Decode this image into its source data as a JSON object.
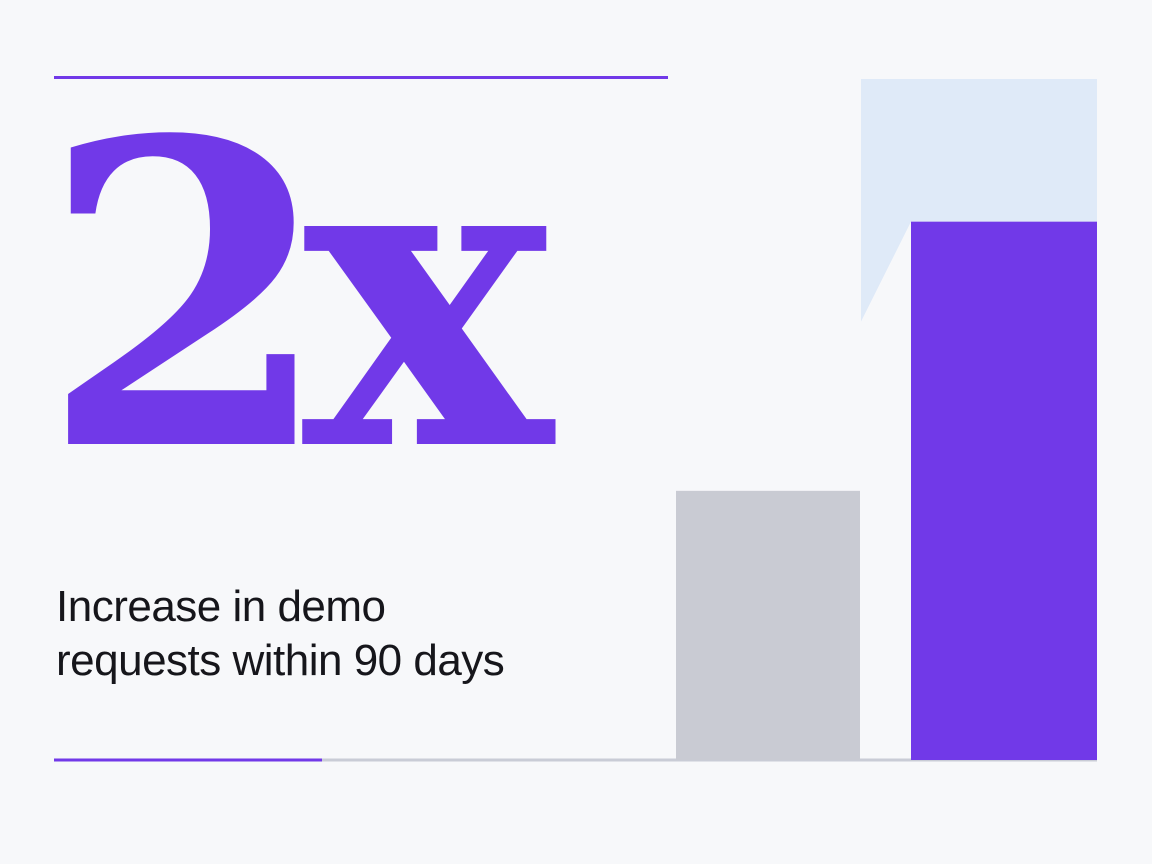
{
  "headline": {
    "stat": "2x",
    "caption_line1": "Increase in demo",
    "caption_line2": "requests within 90 days"
  },
  "colors": {
    "accent": "#7139e8",
    "muted_bar": "#c9cbd3",
    "highlight_area": "#dfeaf8",
    "text": "#16161b",
    "baseline": "#c9ccd6",
    "background": "#f7f8fa"
  },
  "chart_data": {
    "type": "bar",
    "categories": [
      "",
      ""
    ],
    "values": [
      1,
      2
    ],
    "title": "",
    "xlabel": "",
    "ylabel": "",
    "ylim": [
      0,
      2.53
    ],
    "grid": false,
    "legend": "none",
    "annotation": "Light highlight region above the second bar extends to the top of the chart"
  }
}
